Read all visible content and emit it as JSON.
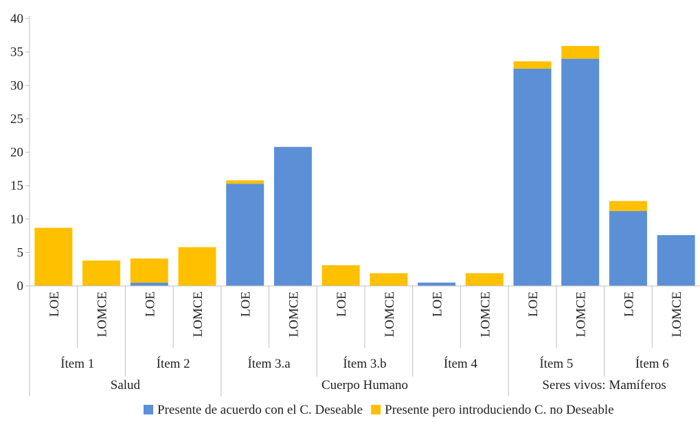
{
  "chart_data": {
    "type": "bar",
    "stacked": true,
    "title": "",
    "xlabel": "",
    "ylabel": "",
    "ylim": [
      0,
      40
    ],
    "yticks": [
      0,
      5,
      10,
      15,
      20,
      25,
      30,
      35,
      40
    ],
    "grid": false,
    "legend_position": "bottom",
    "categories": [
      "LOE",
      "LOMCE",
      "LOE",
      "LOMCE",
      "LOE",
      "LOMCE",
      "LOE",
      "LOMCE",
      "LOE",
      "LOMCE",
      "LOE",
      "LOMCE",
      "LOE",
      "LOMCE"
    ],
    "items": [
      {
        "label": "Ítem 1",
        "span": [
          0,
          1
        ]
      },
      {
        "label": "Ítem 2",
        "span": [
          2,
          3
        ]
      },
      {
        "label": "Ítem 3.a",
        "span": [
          4,
          5
        ]
      },
      {
        "label": "Ítem 3.b",
        "span": [
          6,
          7
        ]
      },
      {
        "label": "Ítem 4",
        "span": [
          8,
          9
        ]
      },
      {
        "label": "Ítem 5",
        "span": [
          10,
          11
        ]
      },
      {
        "label": "Ítem 6",
        "span": [
          12,
          13
        ]
      }
    ],
    "groups": [
      {
        "label": "Salud",
        "span": [
          0,
          3
        ]
      },
      {
        "label": "Cuerpo Humano",
        "span": [
          4,
          9
        ]
      },
      {
        "label": "Seres vivos: Mamíferos",
        "span": [
          10,
          13
        ]
      }
    ],
    "series": [
      {
        "name": "Presente de acuerdo con el C. Deseable",
        "color": "#5B8FD6",
        "values": [
          0,
          0,
          0.5,
          0,
          15.3,
          20.8,
          0,
          0,
          0.5,
          0,
          32.5,
          34,
          11.2,
          7.6
        ]
      },
      {
        "name": "Presente pero introduciendo C. no Deseable",
        "color": "#FFC000",
        "values": [
          8.7,
          3.8,
          3.6,
          5.8,
          0.5,
          0,
          3.1,
          1.9,
          0,
          1.9,
          1.1,
          1.9,
          1.5,
          0
        ]
      }
    ]
  }
}
